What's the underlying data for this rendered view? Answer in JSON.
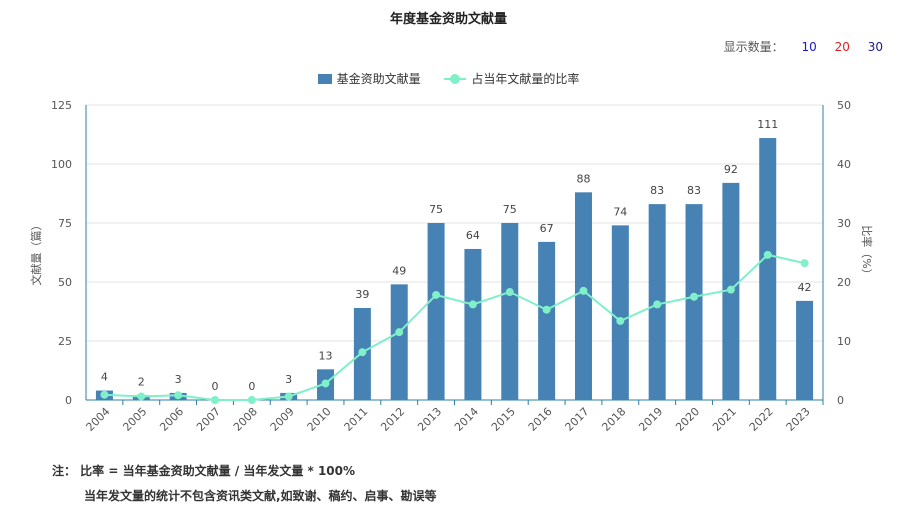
{
  "page": {
    "title": "年度基金资助文献量",
    "show_count": {
      "label": "显示数量：",
      "options": [
        "10",
        "20",
        "30"
      ],
      "option_colors": [
        "#1a1acc",
        "#e02020",
        "#1a1a99"
      ]
    },
    "note_line1": "注： 比率 = 当年基金资助文献量 / 当年发文量 * 100%",
    "note_line2": "当年发文量的统计不包含资讯类文献,如致谢、稿约、启事、勘误等"
  },
  "chart_data": {
    "type": "bar",
    "title": "年度基金资助文献量",
    "categories": [
      "2004",
      "2005",
      "2006",
      "2007",
      "2008",
      "2009",
      "2010",
      "2011",
      "2012",
      "2013",
      "2014",
      "2015",
      "2016",
      "2017",
      "2018",
      "2019",
      "2020",
      "2021",
      "2022",
      "2023"
    ],
    "series": [
      {
        "name": "基金资助文献量",
        "type": "bar",
        "axis": "left",
        "color": "#4682b4",
        "values": [
          4,
          2,
          3,
          0,
          0,
          3,
          13,
          39,
          49,
          75,
          64,
          75,
          67,
          88,
          74,
          83,
          83,
          92,
          111,
          42
        ]
      },
      {
        "name": "占当年文献量的比率",
        "type": "line",
        "axis": "right",
        "color": "#7ff0c8",
        "values": [
          0.9,
          0.6,
          0.8,
          0.0,
          0.0,
          0.6,
          2.8,
          8.1,
          11.5,
          17.8,
          16.2,
          18.3,
          15.3,
          18.5,
          13.4,
          16.2,
          17.5,
          18.7,
          24.6,
          23.2
        ]
      }
    ],
    "ylabel": "文献量（篇）",
    "y2label": "比率（%）",
    "ylim": [
      0,
      125
    ],
    "y2lim": [
      0,
      50
    ],
    "yticks": [
      0,
      25,
      50,
      75,
      100,
      125
    ],
    "y2ticks": [
      0,
      10,
      20,
      30,
      40,
      50
    ],
    "grid": true,
    "legend": "top-center"
  }
}
